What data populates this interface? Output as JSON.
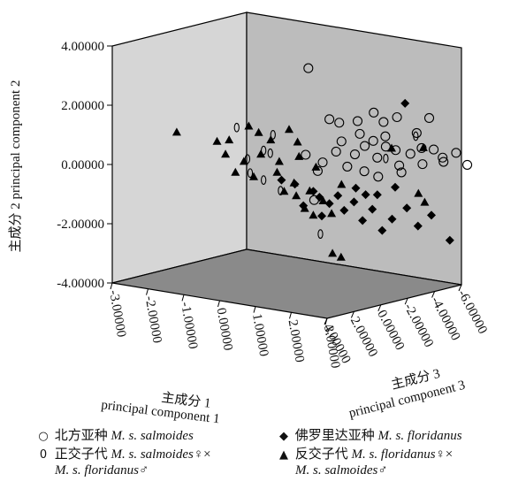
{
  "chart_data": {
    "type": "scatter3d",
    "axes": {
      "x": {
        "label_cn": "主成分 1",
        "label_en": "principal component 1",
        "range": [
          -3,
          3
        ],
        "ticks": [
          "-3.00000",
          "-2.00000",
          "-1.00000",
          "0.00000",
          "1.00000",
          "2.00000",
          "3.00000"
        ]
      },
      "y": {
        "label_cn": "主成分 2",
        "label_en": "principal component 2",
        "range": [
          -4,
          4
        ],
        "ticks": [
          "4.00000",
          "2.00000",
          "0.00000",
          "-2.00000",
          "-4.00000"
        ]
      },
      "z": {
        "label_cn": "主成分 3",
        "label_en": "principal component 3",
        "range": [
          -6,
          4
        ],
        "ticks": [
          "-6.00000",
          "-4.00000",
          "-2.00000",
          "0.00000",
          "2.00000",
          "4.00000"
        ]
      }
    },
    "series": [
      {
        "name": "北方亚种 M. s. salmoides",
        "marker": "circle",
        "points": [
          [
            0.6,
            3.4,
            -1.0
          ],
          [
            1.0,
            1.7,
            -1.5
          ],
          [
            1.2,
            1.6,
            -1.7
          ],
          [
            1.6,
            1.7,
            -2.0
          ],
          [
            1.9,
            2.0,
            -2.4
          ],
          [
            2.1,
            1.7,
            -2.6
          ],
          [
            2.4,
            1.9,
            -2.8
          ],
          [
            2.8,
            1.4,
            -3.2
          ],
          [
            3.0,
            1.9,
            -3.6
          ],
          [
            1.3,
            1.0,
            -1.6
          ],
          [
            1.6,
            0.6,
            -1.8
          ],
          [
            1.8,
            0.9,
            -2.0
          ],
          [
            2.0,
            0.5,
            -2.4
          ],
          [
            2.2,
            0.9,
            -2.5
          ],
          [
            2.5,
            0.3,
            -2.7
          ],
          [
            2.7,
            0.7,
            -3.0
          ],
          [
            3.0,
            0.4,
            -3.1
          ],
          [
            3.2,
            0.9,
            -3.4
          ],
          [
            3.4,
            0.5,
            -3.6
          ],
          [
            3.6,
            0.8,
            -4.0
          ],
          [
            3.8,
            0.4,
            -4.3
          ],
          [
            1.5,
            0.2,
            -1.5
          ],
          [
            1.9,
            0.1,
            -1.7
          ],
          [
            2.1,
            -0.1,
            -2.2
          ],
          [
            2.6,
            0.1,
            -2.6
          ],
          [
            1.0,
            0.3,
            -1.0
          ],
          [
            1.3,
            0.7,
            -1.2
          ],
          [
            0.6,
            0.5,
            -0.8
          ],
          [
            2.3,
            1.3,
            -2.2
          ],
          [
            1.7,
            1.3,
            -1.9
          ],
          [
            2.0,
            1.1,
            -2.1
          ],
          [
            2.4,
            0.8,
            -2.7
          ],
          [
            2.9,
            0.9,
            -3.3
          ],
          [
            3.3,
            0.6,
            -3.8
          ],
          [
            0.8,
            -1.0,
            -0.9
          ],
          [
            0.9,
            0.0,
            -0.9
          ]
        ]
      },
      {
        "name": "佛罗里达亚种 M. s. floridanus",
        "marker": "diamond",
        "points": [
          [
            1.0,
            -0.6,
            -0.3
          ],
          [
            1.1,
            -0.8,
            -0.5
          ],
          [
            1.3,
            -1.0,
            -0.7
          ],
          [
            1.5,
            -0.7,
            -0.8
          ],
          [
            1.6,
            -1.2,
            -1.0
          ],
          [
            1.8,
            -0.9,
            -1.2
          ],
          [
            2.0,
            -1.5,
            -1.3
          ],
          [
            2.2,
            -1.1,
            -1.5
          ],
          [
            2.4,
            -1.8,
            -1.7
          ],
          [
            2.6,
            -1.4,
            -1.9
          ],
          [
            2.9,
            -1.0,
            -2.2
          ],
          [
            3.1,
            -1.6,
            -2.5
          ],
          [
            3.4,
            -1.2,
            -2.7
          ],
          [
            3.8,
            -2.0,
            -3.0
          ],
          [
            3.0,
            2.6,
            -1.8
          ],
          [
            1.7,
            -0.5,
            -1.6
          ],
          [
            1.9,
            -0.7,
            -1.8
          ],
          [
            2.3,
            -0.6,
            -1.6
          ],
          [
            0.3,
            -0.3,
            0.2
          ],
          [
            0.6,
            -0.4,
            0.0
          ],
          [
            0.8,
            -1.1,
            -0.1
          ],
          [
            1.2,
            -1.4,
            -0.4
          ],
          [
            2.5,
            -0.4,
            -2.4
          ]
        ]
      },
      {
        "name": "正交子代 M. s. salmoides♀× M. s. floridanus♂",
        "marker": "ellipse",
        "points": [
          [
            -0.8,
            1.3,
            0.6
          ],
          [
            0.1,
            1.2,
            0.3
          ],
          [
            3.0,
            1.4,
            -2.6
          ],
          [
            -0.2,
            0.6,
            0.2
          ],
          [
            -0.5,
            -0.2,
            0.4
          ],
          [
            -0.2,
            -0.4,
            0.2
          ],
          [
            0.2,
            -0.7,
            0.0
          ],
          [
            1.2,
            -2.0,
            -0.3
          ],
          [
            0.1,
            0.6,
            0.5
          ],
          [
            -0.5,
            0.3,
            0.6
          ],
          [
            2.2,
            0.5,
            -2.5
          ]
        ]
      },
      {
        "name": "反交子代 M. s. floridanus♀× M. s. salmoides♂",
        "marker": "triangle",
        "points": [
          [
            -2.1,
            1.0,
            1.6
          ],
          [
            -1.2,
            0.8,
            1.0
          ],
          [
            -0.9,
            0.9,
            0.9
          ],
          [
            -0.5,
            1.4,
            0.5
          ],
          [
            -0.3,
            1.2,
            0.3
          ],
          [
            0.0,
            1.0,
            0.2
          ],
          [
            0.4,
            1.4,
            -0.1
          ],
          [
            0.6,
            1.0,
            -0.2
          ],
          [
            -1.0,
            0.4,
            0.9
          ],
          [
            -0.6,
            0.2,
            0.6
          ],
          [
            -0.2,
            0.5,
            0.4
          ],
          [
            0.2,
            0.3,
            0.1
          ],
          [
            0.6,
            0.5,
            -0.3
          ],
          [
            1.0,
            0.2,
            -0.5
          ],
          [
            -0.8,
            -0.2,
            0.7
          ],
          [
            -0.4,
            -0.3,
            0.4
          ],
          [
            0.1,
            -0.1,
            0.0
          ],
          [
            0.5,
            -0.4,
            -0.2
          ],
          [
            0.3,
            -0.7,
            0.0
          ],
          [
            0.6,
            -0.8,
            -0.1
          ],
          [
            0.9,
            -0.6,
            -0.3
          ],
          [
            1.2,
            -0.9,
            -0.5
          ],
          [
            1.4,
            -1.3,
            -0.6
          ],
          [
            1.6,
            -0.3,
            -0.8
          ],
          [
            2.4,
            0.9,
            -2.4
          ],
          [
            3.1,
            1.0,
            -2.9
          ],
          [
            3.3,
            -0.4,
            -2.0
          ],
          [
            3.4,
            -0.7,
            -2.2
          ],
          [
            1.5,
            -2.6,
            -0.4
          ],
          [
            1.7,
            -2.7,
            -0.5
          ],
          [
            0.8,
            -1.2,
            -0.2
          ],
          [
            1.0,
            -1.4,
            -0.3
          ]
        ]
      }
    ]
  },
  "legend": {
    "row1": [
      {
        "symbol": "○",
        "label_cn": "北方亚种 ",
        "label_sci": "M. s. salmoides"
      },
      {
        "symbol": "◆",
        "label_cn": "佛罗里达亚种 ",
        "label_sci": "M. s. floridanus"
      }
    ],
    "row2": [
      {
        "symbol": "0",
        "label_cn": "正交子代 ",
        "label_sci": "M. s. salmoides",
        "tail": "♀×",
        "cont_sci": "M. s. floridanus",
        "cont_tail": "♂"
      },
      {
        "symbol": "▲",
        "label_cn": "反交子代 ",
        "label_sci": "M. s. floridanus",
        "tail": "♀×",
        "cont_sci": "M. s. salmoides",
        "cont_tail": "♂"
      }
    ]
  },
  "colors": {
    "back_wall": "#d6d6d6",
    "side_wall": "#bcbcbc",
    "floor": "#8a8a8a",
    "marker": "#000000"
  }
}
